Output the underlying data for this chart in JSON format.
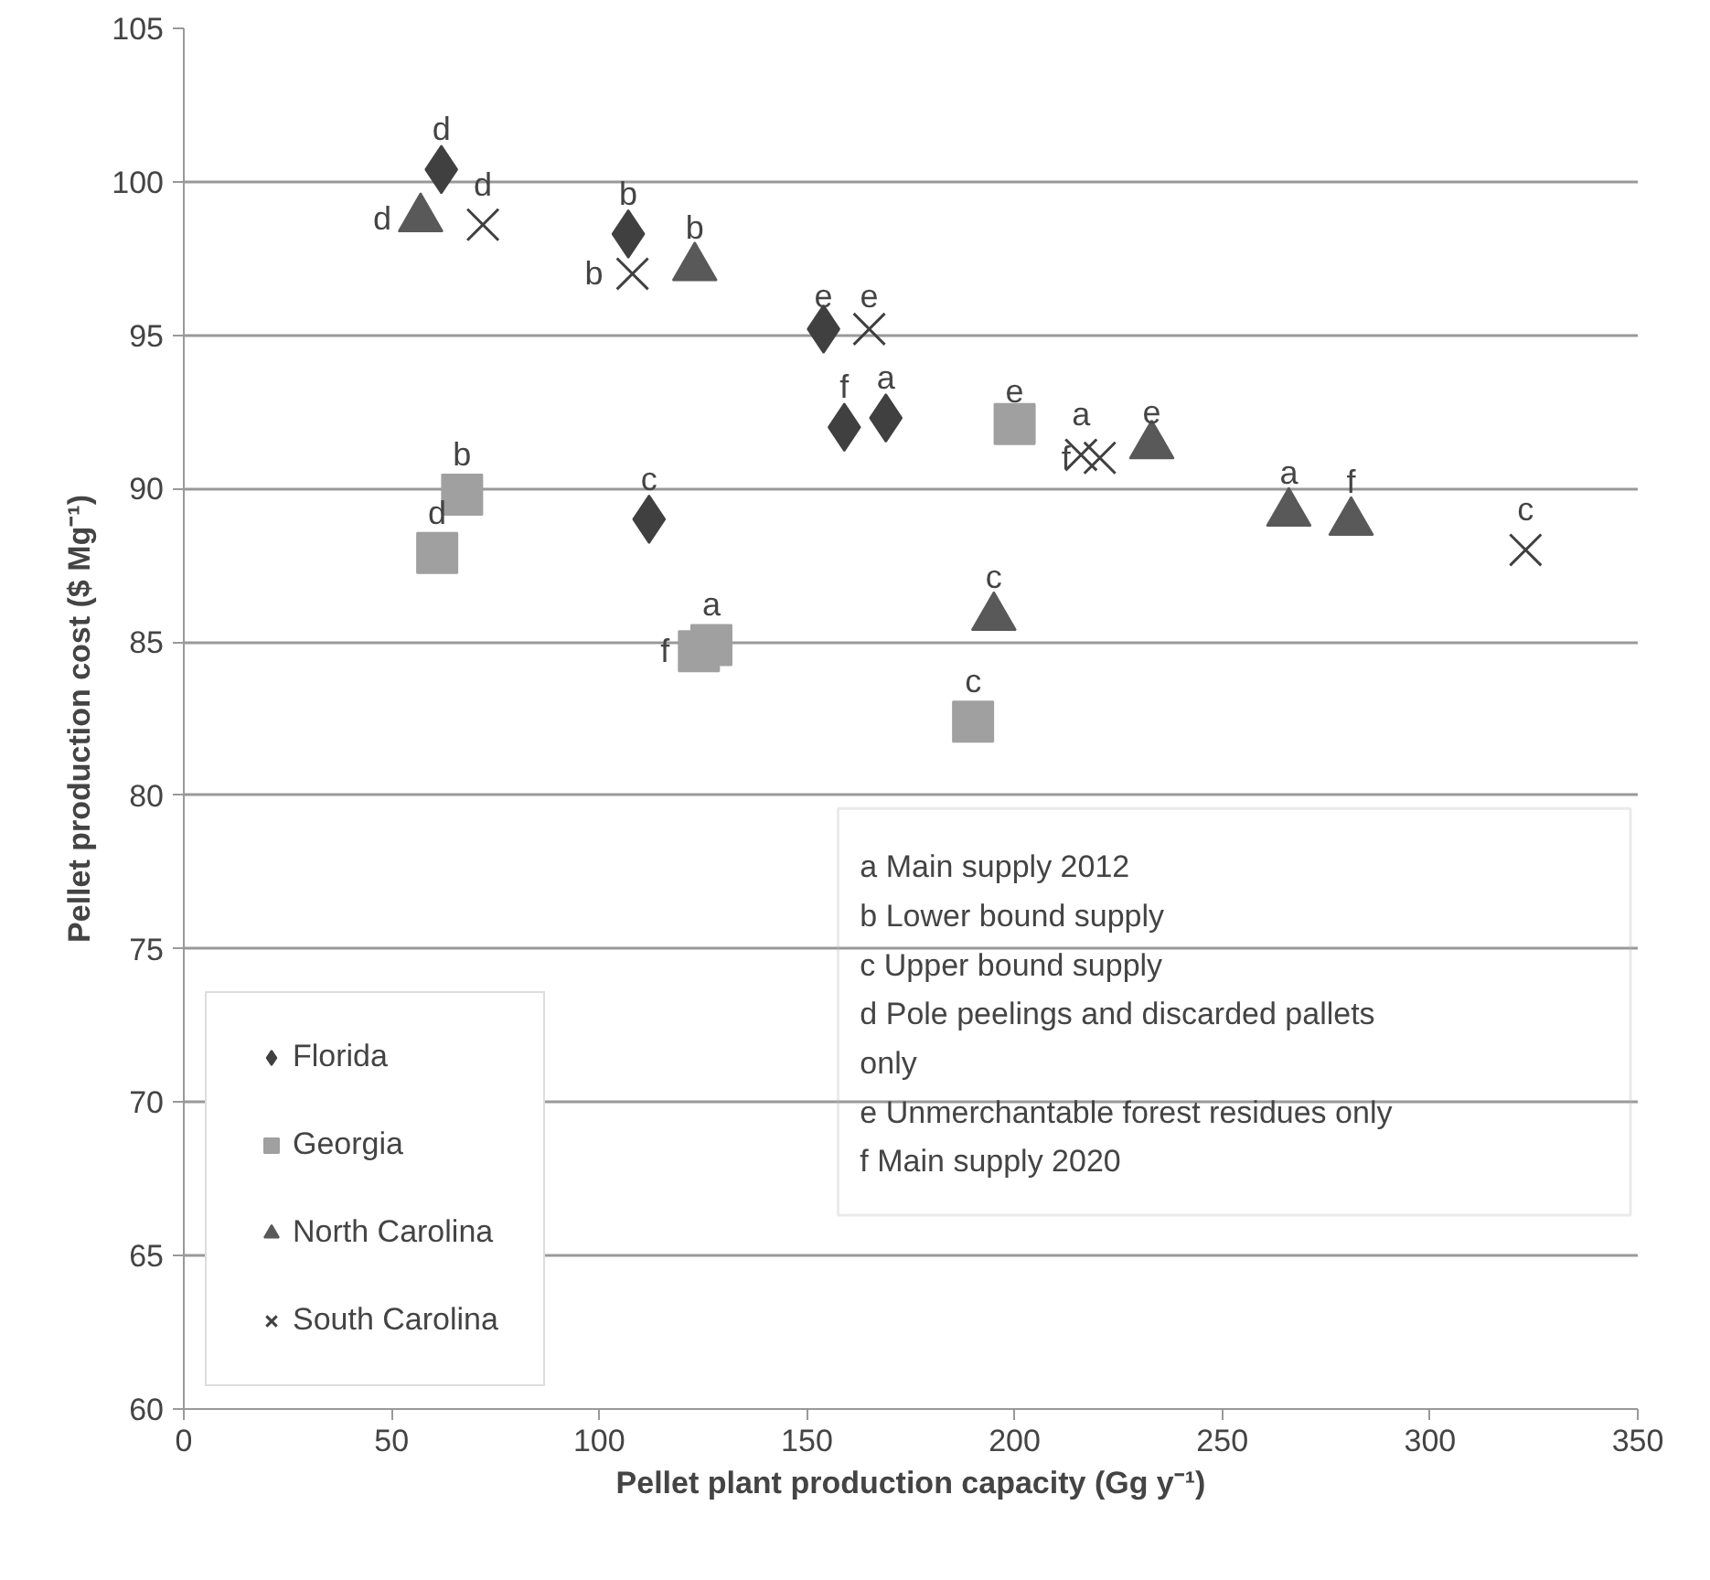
{
  "chart_data": {
    "type": "scatter",
    "xlabel": "Pellet plant production capacity (Gg y⁻¹)",
    "ylabel": "Pellet production cost ($ Mg⁻¹)",
    "xlim": [
      0,
      350
    ],
    "xticks": [
      0,
      50,
      100,
      150,
      200,
      250,
      300,
      350
    ],
    "ylim": [
      60,
      105
    ],
    "yticks": [
      60,
      65,
      70,
      75,
      80,
      85,
      90,
      95,
      100,
      105
    ],
    "grid": "y",
    "legend": "bottom left",
    "series": [
      {
        "name": "Florida",
        "color": "#404040",
        "marker": "diamond",
        "x": [
          169,
          107,
          112,
          62,
          154,
          159
        ],
        "values": [
          92.3,
          98.3,
          89.0,
          100.4,
          95.2,
          92.0
        ],
        "value_labels": [
          "a",
          "b",
          "c",
          "d",
          "e",
          "f"
        ]
      },
      {
        "name": "Georgia",
        "color": "#a0a0a0",
        "marker": "square",
        "x": [
          127,
          67,
          190,
          61,
          200,
          124
        ],
        "values": [
          84.9,
          89.8,
          82.4,
          87.9,
          92.1,
          84.7
        ],
        "value_labels": [
          "a",
          "b",
          "c",
          "d",
          "e",
          "f"
        ]
      },
      {
        "name": "North Carolina",
        "color": "#595959",
        "marker": "triangle",
        "x": [
          266,
          123,
          195,
          57,
          233,
          281
        ],
        "values": [
          89.2,
          97.2,
          85.8,
          98.8,
          91.4,
          88.9
        ],
        "value_labels": [
          "a",
          "b",
          "c",
          "d",
          "e",
          "f"
        ]
      },
      {
        "name": "South Carolina",
        "color": "#404040",
        "marker": "cross",
        "x": [
          216,
          108,
          323,
          72,
          165,
          220.5
        ],
        "values": [
          91.1,
          97.0,
          88.0,
          98.6,
          95.2,
          91.0
        ],
        "value_labels": [
          "a",
          "b",
          "c",
          "d",
          "e",
          "f"
        ]
      }
    ],
    "annotations": [
      "a Main supply 2012",
      "b Lower bound supply",
      "c Upper bound supply",
      "d Pole peelings and discarded pallets only",
      "e Unmerchantable forest residues only",
      "f Main supply 2020"
    ]
  }
}
